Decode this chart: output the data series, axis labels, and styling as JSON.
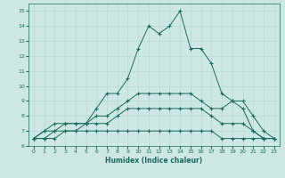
{
  "xlabel": "Humidex (Indice chaleur)",
  "background_color": "#cde8e4",
  "grid_color": "#b8d8d4",
  "line_color": "#1a6b5a",
  "xlim": [
    -0.5,
    23.5
  ],
  "ylim": [
    6,
    15.5
  ],
  "yticks": [
    6,
    7,
    8,
    9,
    10,
    11,
    12,
    13,
    14,
    15
  ],
  "xticks": [
    0,
    1,
    2,
    3,
    4,
    5,
    6,
    7,
    8,
    9,
    10,
    11,
    12,
    13,
    14,
    15,
    16,
    17,
    18,
    19,
    20,
    21,
    22,
    23
  ],
  "series": [
    [
      6.5,
      7.0,
      7.5,
      7.5,
      7.5,
      7.5,
      8.5,
      9.5,
      9.5,
      10.5,
      12.5,
      14.0,
      13.5,
      14.0,
      15.0,
      12.5,
      12.5,
      11.5,
      9.5,
      9.0,
      8.5,
      7.0,
      6.5,
      6.5
    ],
    [
      6.5,
      7.0,
      7.0,
      7.5,
      7.5,
      7.5,
      8.0,
      8.0,
      8.5,
      9.0,
      9.5,
      9.5,
      9.5,
      9.5,
      9.5,
      9.5,
      9.0,
      8.5,
      8.5,
      9.0,
      9.0,
      8.0,
      7.0,
      6.5
    ],
    [
      6.5,
      6.5,
      7.0,
      7.0,
      7.0,
      7.5,
      7.5,
      7.5,
      8.0,
      8.5,
      8.5,
      8.5,
      8.5,
      8.5,
      8.5,
      8.5,
      8.5,
      8.0,
      7.5,
      7.5,
      7.5,
      7.0,
      6.5,
      6.5
    ],
    [
      6.5,
      6.5,
      6.5,
      7.0,
      7.0,
      7.0,
      7.0,
      7.0,
      7.0,
      7.0,
      7.0,
      7.0,
      7.0,
      7.0,
      7.0,
      7.0,
      7.0,
      7.0,
      6.5,
      6.5,
      6.5,
      6.5,
      6.5,
      6.5
    ]
  ]
}
